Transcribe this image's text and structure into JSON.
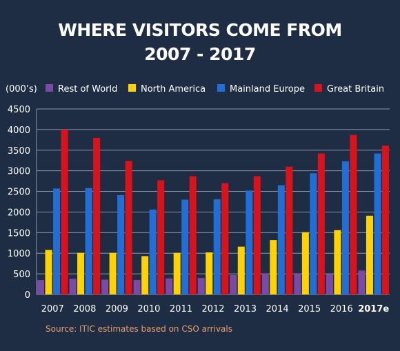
{
  "title_line1": "WHERE VISITORS COME FROM",
  "title_line2": "2007 - 2017",
  "source": "Source: ITIC estimates based on CSO arrivals",
  "chart_data": {
    "type": "bar",
    "title": "WHERE VISITORS COME FROM 2007 - 2017",
    "ylabel": "(000’s)",
    "xlabel": "",
    "ylim": [
      0,
      4500
    ],
    "yticks": [
      0,
      500,
      1000,
      1500,
      2000,
      2500,
      3000,
      3500,
      4000,
      4500
    ],
    "grid": true,
    "legend_position": "top",
    "categories": [
      "2007",
      "2008",
      "2009",
      "2010",
      "2011",
      "2012",
      "2013",
      "2014",
      "2015",
      "2016",
      "2017e"
    ],
    "bold_categories": [
      "2017e"
    ],
    "series": [
      {
        "name": "Rest of World",
        "color": "#7a4aa8",
        "values": [
          350,
          380,
          360,
          350,
          390,
          400,
          470,
          500,
          500,
          490,
          580
        ]
      },
      {
        "name": "North America",
        "color": "#ffd200",
        "values": [
          1080,
          1010,
          1010,
          930,
          1010,
          1020,
          1160,
          1320,
          1510,
          1560,
          1910
        ]
      },
      {
        "name": "Mainland Europe",
        "color": "#1f6fd6",
        "values": [
          2570,
          2580,
          2410,
          2060,
          2300,
          2310,
          2520,
          2650,
          2940,
          3230,
          3420
        ]
      },
      {
        "name": "Great Britain",
        "color": "#d9121c",
        "values": [
          4000,
          3800,
          3240,
          2770,
          2870,
          2700,
          2870,
          3100,
          3420,
          3870,
          3610
        ]
      }
    ]
  }
}
